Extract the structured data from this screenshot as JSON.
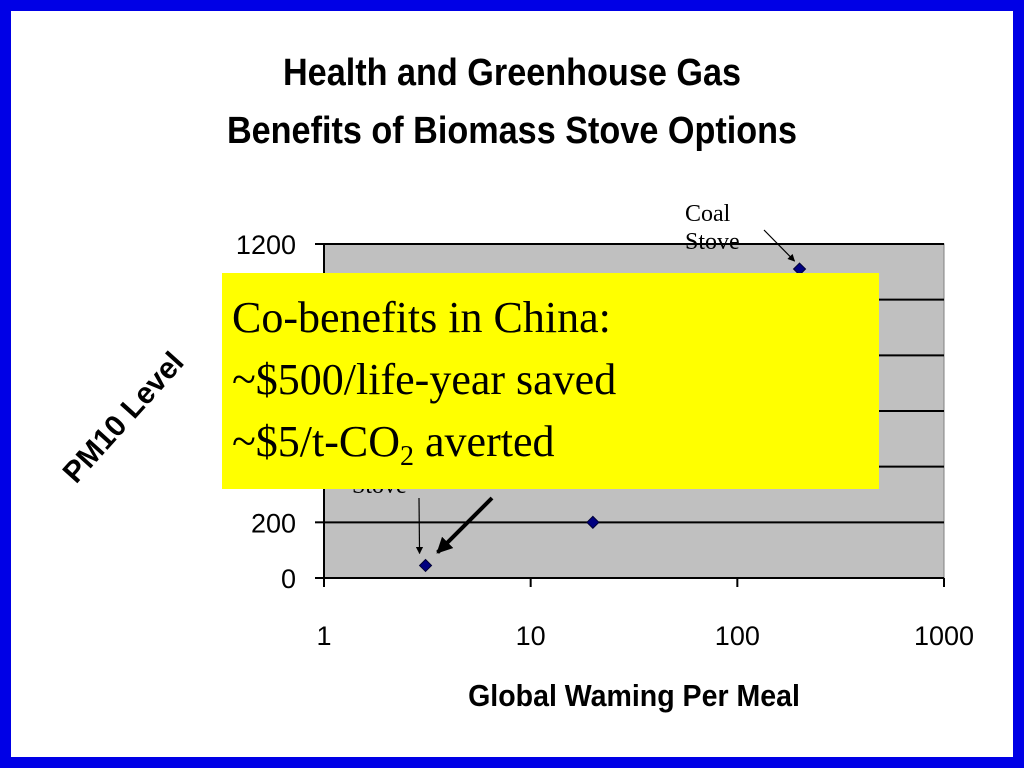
{
  "title": {
    "line1": "Health and Greenhouse Gas",
    "line2": "Benefits of Biomass Stove Options"
  },
  "annotations": {
    "coal_line1": "Coal",
    "coal_line2": "Stove",
    "lower_stove": "Stove"
  },
  "callout": {
    "line1": "Co-benefits in China:",
    "line2": "~$500/life-year saved",
    "line3_prefix": "~$5/t-CO",
    "line3_sub": "2",
    "line3_suffix": " averted"
  },
  "colors": {
    "frame": "#0000e6",
    "plot_area": "#c0c0c0",
    "marker": "#000080",
    "callout": "#ffff00"
  },
  "chart_data": {
    "type": "scatter",
    "title": "Health and Greenhouse Gas Benefits of Biomass Stove Options",
    "xlabel": "Global Waming Per Meal",
    "ylabel": "PM10 Level",
    "xscale": "log",
    "xlim": [
      1,
      1000
    ],
    "ylim": [
      0,
      1200
    ],
    "x_ticks": [
      1,
      10,
      100,
      1000
    ],
    "x_tick_labels": [
      "1",
      "10",
      "100",
      "1000"
    ],
    "y_ticks": [
      0,
      200,
      400,
      600,
      800,
      1000,
      1200
    ],
    "y_tick_labels": [
      "0",
      "200",
      "",
      "",
      "",
      "",
      "1200"
    ],
    "grid": "horizontal",
    "marker": "diamond",
    "series": [
      {
        "points": [
          {
            "x": 3.1,
            "y": 45
          },
          {
            "x": 20,
            "y": 200
          },
          {
            "x": 200,
            "y": 1110
          }
        ]
      }
    ]
  }
}
